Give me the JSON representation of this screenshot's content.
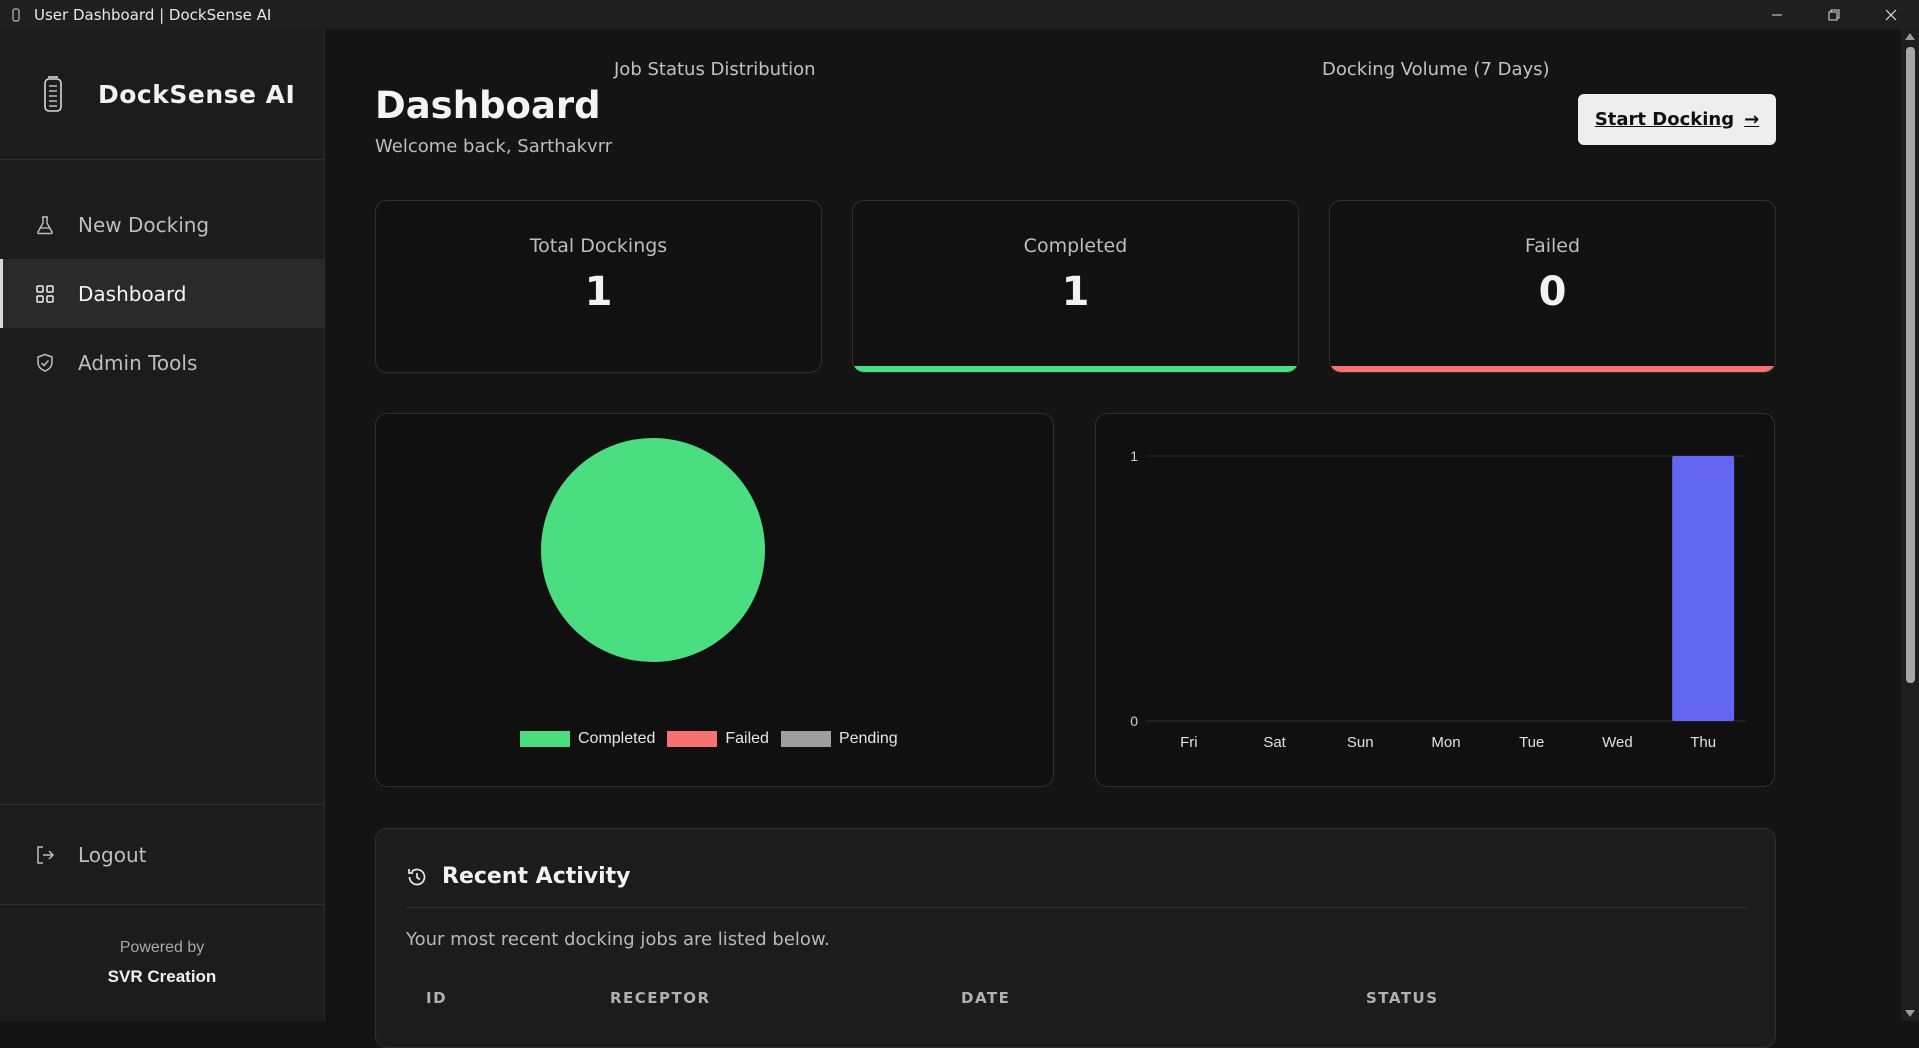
{
  "window": {
    "title": "User Dashboard | DockSense AI"
  },
  "sidebar": {
    "brand": "DockSense AI",
    "items": [
      {
        "label": "New Docking",
        "icon": "flask-icon"
      },
      {
        "label": "Dashboard",
        "icon": "grid-icon",
        "active": true
      },
      {
        "label": "Admin Tools",
        "icon": "shield-check-icon"
      }
    ],
    "logout_label": "Logout",
    "powered_by": "Powered by",
    "maker": "SVR Creation"
  },
  "header": {
    "title": "Dashboard",
    "welcome": "Welcome back, Sarthakvrr",
    "start_button": "Start Docking",
    "start_button_arrow": "→"
  },
  "stats": [
    {
      "label": "Total Dockings",
      "value": "1",
      "accent": ""
    },
    {
      "label": "Completed",
      "value": "1",
      "accent": "#4ade80"
    },
    {
      "label": "Failed",
      "value": "0",
      "accent": "#f87171"
    }
  ],
  "chart_data": [
    {
      "type": "pie",
      "title": "Job Status Distribution",
      "categories": [
        "Completed",
        "Failed",
        "Pending"
      ],
      "values": [
        1,
        0,
        0
      ],
      "colors": [
        "#4ade80",
        "#f87171",
        "#9e9e9e"
      ],
      "legend": "bottom"
    },
    {
      "type": "bar",
      "title": "Docking Volume (7 Days)",
      "categories": [
        "Fri",
        "Sat",
        "Sun",
        "Mon",
        "Tue",
        "Wed",
        "Thu"
      ],
      "values": [
        0,
        0,
        0,
        0,
        0,
        0,
        1
      ],
      "ylim": [
        0,
        1
      ],
      "yticks": [
        "0",
        "1"
      ],
      "color": "#6366f1",
      "grid": true
    }
  ],
  "activity": {
    "title": "Recent Activity",
    "description": "Your most recent docking jobs are listed below.",
    "columns": [
      "ID",
      "RECEPTOR",
      "DATE",
      "STATUS"
    ]
  }
}
